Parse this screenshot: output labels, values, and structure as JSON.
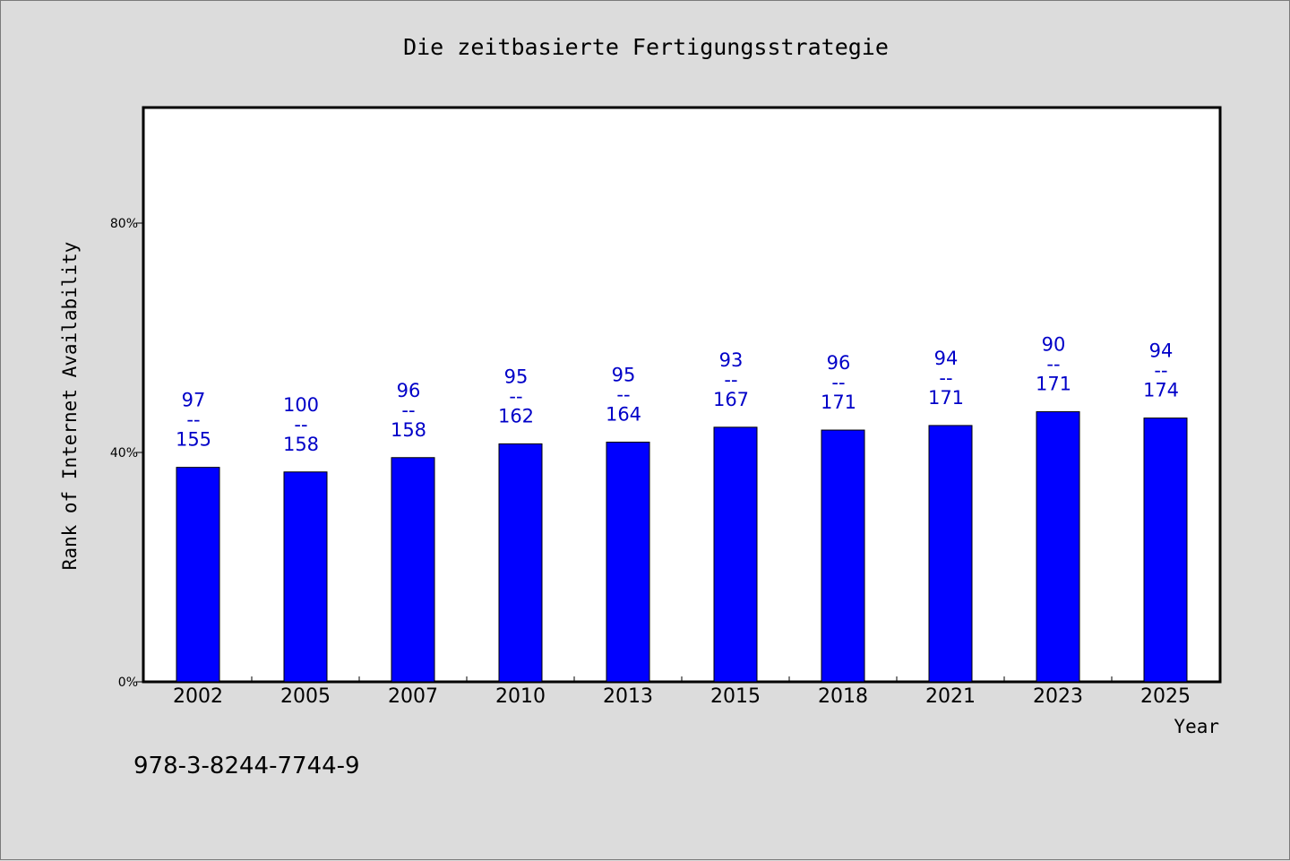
{
  "chart_data": {
    "type": "bar",
    "title": "Die zeitbasierte Fertigungsstrategie",
    "xlabel": "Year",
    "ylabel": "Rank of Internet Availability",
    "footer": "978-3-8244-7744-9",
    "categories": [
      "2002",
      "2005",
      "2007",
      "2010",
      "2013",
      "2015",
      "2018",
      "2021",
      "2023",
      "2025"
    ],
    "values": [
      37.4,
      36.6,
      39.1,
      41.5,
      41.8,
      44.4,
      43.9,
      44.7,
      47.1,
      46.0
    ],
    "data_labels": [
      {
        "rank": "97",
        "separator": "--",
        "total": "155"
      },
      {
        "rank": "100",
        "separator": "--",
        "total": "158"
      },
      {
        "rank": "96",
        "separator": "--",
        "total": "158"
      },
      {
        "rank": "95",
        "separator": "--",
        "total": "162"
      },
      {
        "rank": "95",
        "separator": "--",
        "total": "164"
      },
      {
        "rank": "93",
        "separator": "--",
        "total": "167"
      },
      {
        "rank": "96",
        "separator": "--",
        "total": "171"
      },
      {
        "rank": "94",
        "separator": "--",
        "total": "171"
      },
      {
        "rank": "90",
        "separator": "--",
        "total": "171"
      },
      {
        "rank": "94",
        "separator": "--",
        "total": "174"
      }
    ],
    "yticks": [
      {
        "value": 0,
        "label": "0%"
      },
      {
        "value": 40,
        "label": "40%"
      },
      {
        "value": 80,
        "label": "80%"
      }
    ],
    "ylim": [
      0,
      100
    ],
    "grid": false,
    "legend": "none",
    "bar_color": "#0000ff",
    "label_color": "#0000c8",
    "background_color": "#dcdcdc",
    "plot_background": "#ffffff"
  }
}
